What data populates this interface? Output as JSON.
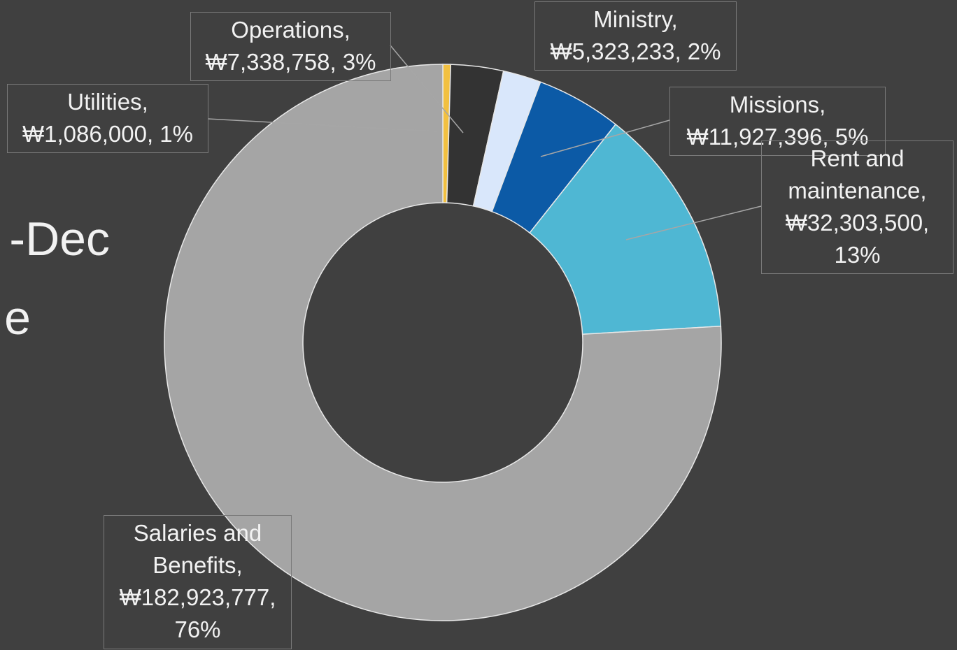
{
  "slide": {
    "title_fragments": [
      "-Dec",
      "e"
    ]
  },
  "chart_data": {
    "type": "donut",
    "values": [
      1086000,
      7338758,
      5323233,
      11927396,
      32303500,
      182923777
    ],
    "value_labels": [
      "Utilities, ₩1,086,000, 1%",
      "Operations, ₩7,338,758, 3%",
      "Ministry, ₩5,323,233, 2%",
      "Missions, ₩11,927,396, 5%",
      "Rent and maintenance, ₩32,303,500, 13%",
      "Salaries and Benefits, ₩182,923,777, 76%"
    ],
    "colors": [
      "#f2c040",
      "#333333",
      "#d9e7fb",
      "#0c5aa6",
      "#4fb7d3",
      "#a5a5a5"
    ]
  }
}
